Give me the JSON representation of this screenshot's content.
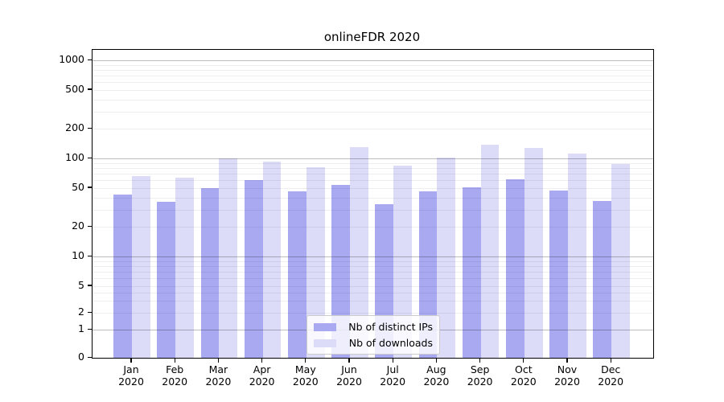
{
  "chart_data": {
    "type": "bar",
    "title": "onlineFDR 2020",
    "categories": [
      "Jan",
      "Feb",
      "Mar",
      "Apr",
      "May",
      "Jun",
      "Jul",
      "Aug",
      "Sep",
      "Oct",
      "Nov",
      "Dec"
    ],
    "year": "2020",
    "series": [
      {
        "name": "Nb of distinct IPs",
        "color": "#a9a9f2",
        "values": [
          43,
          36,
          50,
          60,
          46,
          54,
          34,
          46,
          51,
          61,
          47,
          37
        ]
      },
      {
        "name": "Nb of downloads",
        "color": "#dcdcf8",
        "values": [
          66,
          63,
          100,
          93,
          82,
          130,
          84,
          102,
          138,
          127,
          113,
          87
        ]
      }
    ],
    "yticks": [
      1000,
      500,
      200,
      100,
      50,
      20,
      10,
      5,
      2,
      1,
      0
    ],
    "minor_grid_values": [
      2,
      3,
      4,
      5,
      6,
      7,
      8,
      9,
      20,
      30,
      40,
      50,
      60,
      70,
      80,
      90,
      200,
      300,
      400,
      500,
      600,
      700,
      800,
      900
    ],
    "major_grid_values": [
      1,
      10,
      100,
      1000
    ],
    "scale": "symlog",
    "ylim": [
      0,
      1280
    ],
    "grid": true,
    "legend_position": "lower center"
  }
}
